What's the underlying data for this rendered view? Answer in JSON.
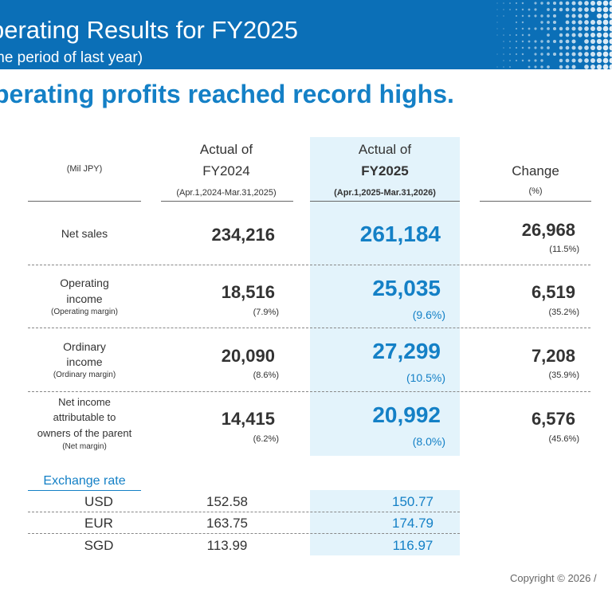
{
  "header": {
    "title": "perating Results for FY2025",
    "subtitle": "me period of last year)"
  },
  "headline": "perating profits reached record highs.",
  "table": {
    "unit": "(Mil JPY)",
    "col_prev": {
      "line1": "Actual of",
      "line2": "FY2024",
      "period": "(Apr.1,2024-Mar.31,2025)"
    },
    "col_curr": {
      "line1": "Actual of",
      "line2": "FY2025",
      "period": "(Apr.1,2025-Mar.31,2026)"
    },
    "col_change": {
      "line1": "Change",
      "line2": "(%)"
    },
    "rows": [
      {
        "label_lines": [
          "Net sales"
        ],
        "sub_label": "",
        "prev": "234,216",
        "prev_pct": "",
        "curr": "261,184",
        "curr_pct": "",
        "change": "26,968",
        "change_pct": "(11.5%)"
      },
      {
        "label_lines": [
          "Operating",
          "income"
        ],
        "sub_label": "(Operating margin)",
        "prev": "18,516",
        "prev_pct": "(7.9%)",
        "curr": "25,035",
        "curr_pct": "(9.6%)",
        "change": "6,519",
        "change_pct": "(35.2%)"
      },
      {
        "label_lines": [
          "Ordinary",
          "income"
        ],
        "sub_label": "(Ordinary margin)",
        "prev": "20,090",
        "prev_pct": "(8.6%)",
        "curr": "27,299",
        "curr_pct": "(10.5%)",
        "change": "7,208",
        "change_pct": "(35.9%)"
      },
      {
        "label_lines": [
          "Net income",
          "attributable to",
          "owners of the parent"
        ],
        "sub_label": "(Net margin)",
        "prev": "14,415",
        "prev_pct": "(6.2%)",
        "curr": "20,992",
        "curr_pct": "(8.0%)",
        "change": "6,576",
        "change_pct": "(45.6%)"
      }
    ]
  },
  "exchange": {
    "title": "Exchange rate",
    "rows": [
      {
        "currency": "USD",
        "prev": "152.58",
        "curr": "150.77"
      },
      {
        "currency": "EUR",
        "prev": "163.75",
        "curr": "174.79"
      },
      {
        "currency": "SGD",
        "prev": "113.99",
        "curr": "116.97"
      }
    ]
  },
  "footer": {
    "copyright": "Copyright © 2026 /"
  },
  "colors": {
    "banner": "#0b6fb7",
    "accent": "#1480c6",
    "highlight": "#e3f3fb"
  }
}
